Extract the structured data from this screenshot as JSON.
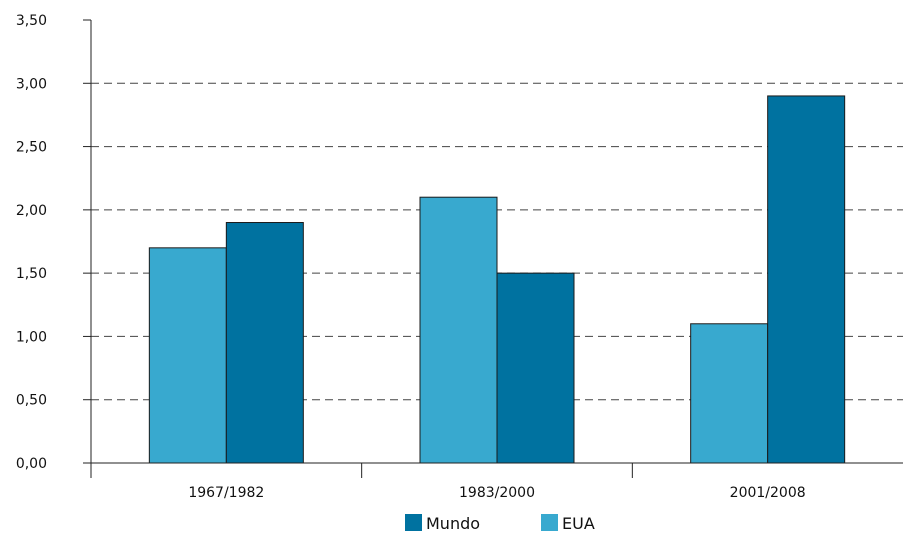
{
  "chart_data": {
    "type": "bar",
    "categories": [
      "1967/1982",
      "1983/2000",
      "2001/2008"
    ],
    "series": [
      {
        "name": "EUA",
        "color": "#38a9cf",
        "values": [
          1.7,
          2.1,
          1.1
        ]
      },
      {
        "name": "Mundo",
        "color": "#0072a0",
        "values": [
          1.9,
          1.5,
          2.9
        ]
      }
    ],
    "ylim": [
      0,
      3.5
    ],
    "yticks": [
      "0,00",
      "0,50",
      "1,00",
      "1,50",
      "2,00",
      "2,50",
      "3,00",
      "3,50"
    ],
    "grid": "horizontal dashed",
    "legend_position": "bottom-center",
    "legend_order": [
      "Mundo",
      "EUA"
    ],
    "xlabel": "",
    "ylabel": "",
    "title": ""
  }
}
